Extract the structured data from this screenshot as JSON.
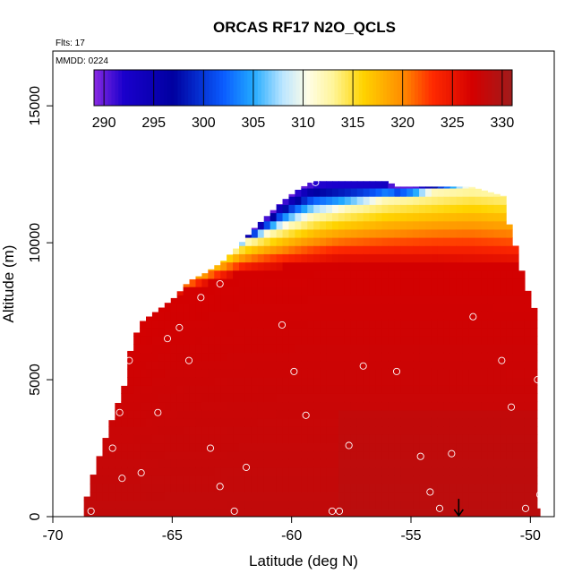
{
  "chart_data": {
    "type": "heatmap",
    "title": "ORCAS RF17 N2O_QCLS",
    "annotations": {
      "flights": "Flts: 17",
      "mmdd": "MMDD: 0224"
    },
    "xlabel": "Latitude (deg N)",
    "ylabel": "Altitude (m)",
    "xlim": [
      -70,
      -49
    ],
    "ylim": [
      0,
      17000
    ],
    "x_ticks": [
      -70,
      -65,
      -60,
      -55,
      -50
    ],
    "x_tick_labels": [
      "-70",
      "-65",
      "-60",
      "-55",
      "-50"
    ],
    "y_ticks": [
      0,
      5000,
      10000,
      15000
    ],
    "y_tick_labels": [
      "0",
      "5000",
      "10000",
      "15000"
    ],
    "colorbar": {
      "range": [
        289,
        331
      ],
      "ticks": [
        290,
        295,
        300,
        305,
        310,
        315,
        320,
        325,
        330
      ],
      "tick_labels": [
        "290",
        "295",
        "300",
        "305",
        "310",
        "315",
        "320",
        "325",
        "330"
      ],
      "stops": [
        {
          "value": 289,
          "color": "#8a2be2"
        },
        {
          "value": 292,
          "color": "#1a00cc"
        },
        {
          "value": 297,
          "color": "#0000a0"
        },
        {
          "value": 302,
          "color": "#0a5cff"
        },
        {
          "value": 305,
          "color": "#22aaff"
        },
        {
          "value": 308,
          "color": "#bde6ff"
        },
        {
          "value": 310.5,
          "color": "#fffde6"
        },
        {
          "value": 313,
          "color": "#fff59a"
        },
        {
          "value": 316,
          "color": "#ffd400"
        },
        {
          "value": 320,
          "color": "#ff8c00"
        },
        {
          "value": 323,
          "color": "#ff2a00"
        },
        {
          "value": 327,
          "color": "#d40000"
        },
        {
          "value": 331,
          "color": "#a01c1c"
        }
      ]
    },
    "surface_value": 328.5,
    "domain_top": [
      [
        -68.7,
        300
      ],
      [
        -68.4,
        1300
      ],
      [
        -67.9,
        2600
      ],
      [
        -67.5,
        3600
      ],
      [
        -67.0,
        4800
      ],
      [
        -66.7,
        6300
      ],
      [
        -66.3,
        7100
      ],
      [
        -65.5,
        7600
      ],
      [
        -64.9,
        8000
      ],
      [
        -64.3,
        8600
      ],
      [
        -63.6,
        8900
      ],
      [
        -62.9,
        9300
      ],
      [
        -62.2,
        9900
      ],
      [
        -61.6,
        10500
      ],
      [
        -61.0,
        11000
      ],
      [
        -60.4,
        11500
      ],
      [
        -59.8,
        11900
      ],
      [
        -59.1,
        12250
      ],
      [
        -56.0,
        12250
      ],
      [
        -55.6,
        12050
      ],
      [
        -52.5,
        12050
      ],
      [
        -51.1,
        11700
      ],
      [
        -50.9,
        10700
      ],
      [
        -50.5,
        9500
      ],
      [
        -50.3,
        8700
      ],
      [
        -49.8,
        7500
      ],
      [
        -49.6,
        6000
      ],
      [
        -49.6,
        300
      ]
    ],
    "stratosphere": {
      "warm_edge_start": [
        [
          -66.7,
          6900
        ],
        [
          -65.0,
          8100
        ],
        [
          -62.0,
          9000
        ],
        [
          -58.0,
          9400
        ],
        [
          -54.0,
          9400
        ],
        [
          -50.9,
          9300
        ]
      ],
      "warm_edge_end": [
        [
          -66.7,
          7700
        ],
        [
          -65.0,
          8600
        ],
        [
          -62.0,
          10000
        ],
        [
          -59.0,
          11000
        ],
        [
          -56.0,
          11600
        ],
        [
          -52.5,
          12050
        ],
        [
          -50.9,
          11900
        ]
      ],
      "notes": "values decrease upward from about 327 at the lower edge to about 289 at the top of the sampled region"
    },
    "sample_points": [
      [
        -68.4,
        200
      ],
      [
        -67.5,
        2500
      ],
      [
        -67.1,
        1400
      ],
      [
        -67.2,
        3800
      ],
      [
        -66.8,
        5700
      ],
      [
        -66.3,
        1600
      ],
      [
        -65.6,
        3800
      ],
      [
        -65.2,
        6500
      ],
      [
        -64.7,
        6900
      ],
      [
        -64.3,
        5700
      ],
      [
        -63.8,
        8000
      ],
      [
        -63.4,
        2500
      ],
      [
        -63.0,
        8500
      ],
      [
        -63.0,
        1100
      ],
      [
        -62.4,
        200
      ],
      [
        -61.9,
        1800
      ],
      [
        -60.4,
        7000
      ],
      [
        -59.9,
        5300
      ],
      [
        -59.4,
        3700
      ],
      [
        -59.0,
        12200
      ],
      [
        -58.3,
        200
      ],
      [
        -58.0,
        200
      ],
      [
        -57.6,
        2600
      ],
      [
        -57.0,
        5500
      ],
      [
        -55.6,
        5300
      ],
      [
        -55.5,
        12200
      ],
      [
        -54.6,
        2200
      ],
      [
        -54.2,
        900
      ],
      [
        -53.8,
        300
      ],
      [
        -53.3,
        2300
      ],
      [
        -52.4,
        7300
      ],
      [
        -51.2,
        5700
      ],
      [
        -50.8,
        4000
      ],
      [
        -51.0,
        11900
      ],
      [
        -50.2,
        300
      ],
      [
        -49.9,
        8600
      ],
      [
        -49.7,
        5000
      ],
      [
        -49.6,
        800
      ]
    ],
    "takeoff_marker": {
      "lat": -53.0,
      "alt_top": 650,
      "alt_bottom": 0
    }
  }
}
